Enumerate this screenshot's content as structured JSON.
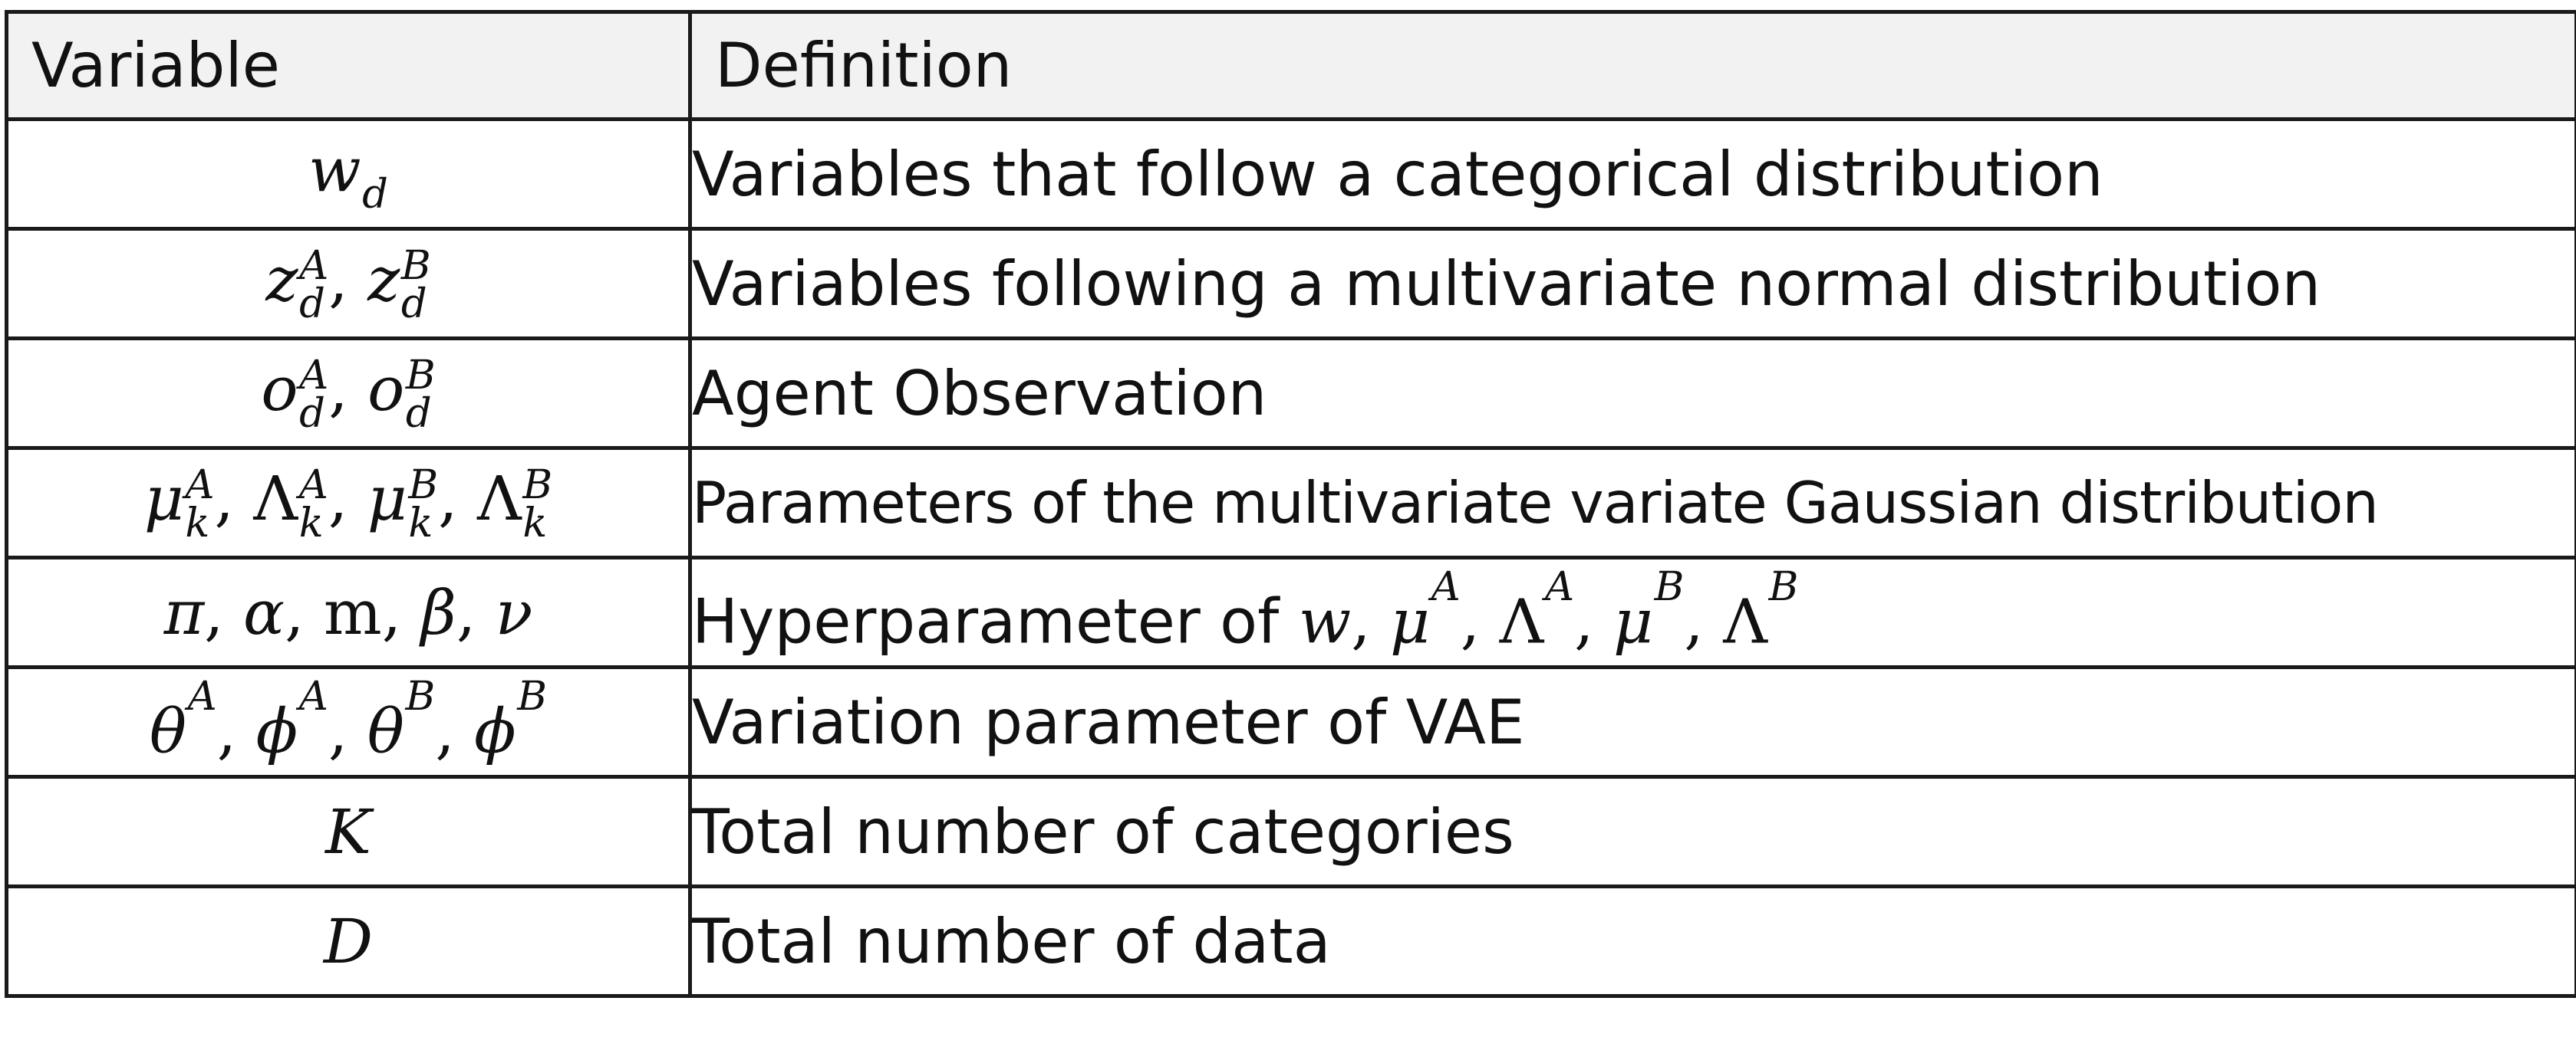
{
  "table": {
    "headers": {
      "variable": "Variable",
      "definition": "Definition"
    },
    "rows": [
      {
        "variable": "w_d",
        "definition_text": "Variables that follow a categorical distribution",
        "definition_math": ""
      },
      {
        "variable": "z_d^A, z_d^B",
        "definition_text": "Variables following a multivariate normal distribution",
        "definition_math": ""
      },
      {
        "variable": "o_d^A, o_d^B",
        "definition_text": "Agent Observation",
        "definition_math": ""
      },
      {
        "variable": "μ_k^A, Λ_k^A, μ_k^B, Λ_k^B",
        "definition_text": "Parameters of the multivariate variate Gaussian distribution",
        "definition_math": ""
      },
      {
        "variable": "π, α, m, β, ν",
        "definition_text": "Hyperparameter of ",
        "definition_math": "w, μ^A, Λ^A, μ^B, Λ^B"
      },
      {
        "variable": "θ^A, ϕ^A, θ^B, ϕ^B",
        "definition_text": "Variation parameter of VAE",
        "definition_math": ""
      },
      {
        "variable": "K",
        "definition_text": "Total number of categories",
        "definition_math": ""
      },
      {
        "variable": "D",
        "definition_text": "Total number of data",
        "definition_math": ""
      }
    ]
  }
}
